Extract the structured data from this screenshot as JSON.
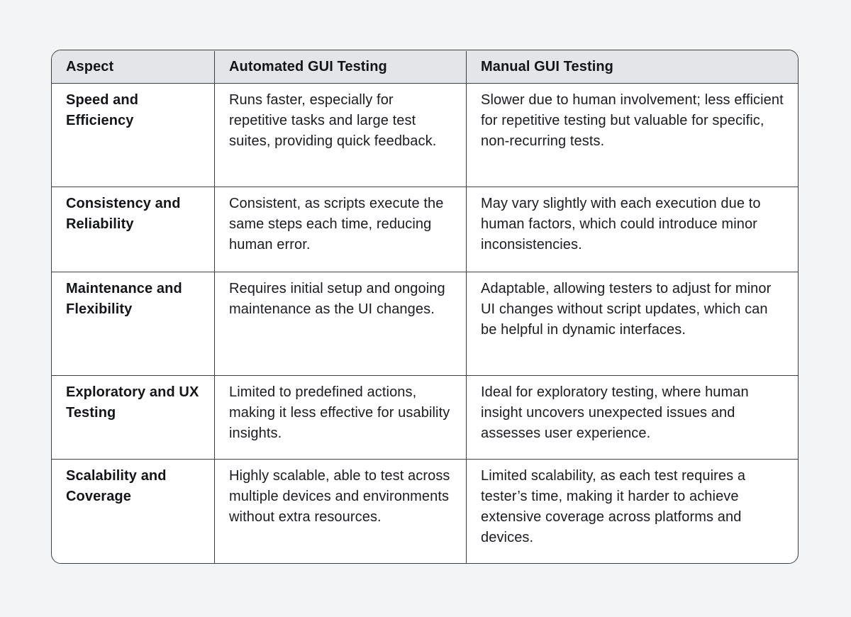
{
  "page": {
    "background_color": "#f2f4f6",
    "table_border_color": "#3c4043",
    "header_background_color": "#e3e5e8",
    "body_background_color": "#ffffff",
    "text_color": "#1a1c20"
  },
  "chart_data": {
    "type": "table",
    "title": "",
    "columns": [
      "Aspect",
      "Automated GUI Testing",
      "Manual GUI Testing"
    ],
    "rows": [
      [
        "Speed and Efficiency",
        "Runs faster, especially for repetitive tasks and large test suites, providing quick feedback.",
        "Slower due to human involvement; less efficient for repetitive testing but valuable for specific, non-recurring tests."
      ],
      [
        "Consistency and Reliability",
        "Consistent, as scripts execute the same steps each time, reducing human error.",
        "May vary slightly with each execution due to human factors, which could introduce minor inconsistencies."
      ],
      [
        "Maintenance and Flexibility",
        "Requires initial setup and ongoing maintenance as the UI changes.",
        "Adaptable, allowing testers to adjust for minor UI changes without script updates, which can be helpful in dynamic interfaces."
      ],
      [
        "Exploratory and UX Testing",
        "Limited to predefined actions, making it less effective for usability insights.",
        "Ideal for exploratory testing, where human insight uncovers unexpected issues and assesses user experience."
      ],
      [
        "Scalability and Coverage",
        "Highly scalable, able to test across multiple devices and environments without extra resources.",
        "Limited scalability, as each test requires a tester’s time, making it harder to achieve extensive coverage across platforms and devices."
      ]
    ]
  }
}
